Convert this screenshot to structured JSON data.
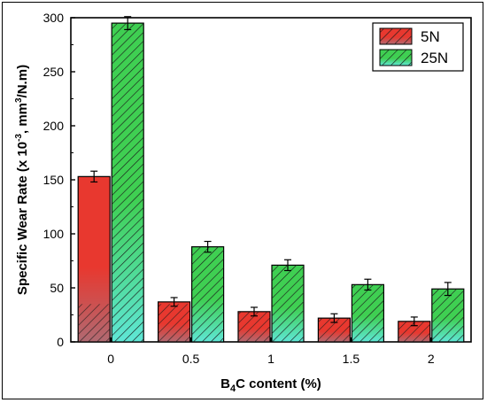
{
  "chart_data": {
    "type": "bar",
    "categories": [
      "0",
      "0.5",
      "1",
      "1.5",
      "2"
    ],
    "series": [
      {
        "name": "5N",
        "values": [
          153,
          37,
          28,
          22,
          19
        ],
        "errors": [
          5,
          4,
          4,
          4,
          4
        ],
        "color": "#e8382f"
      },
      {
        "name": "25N",
        "values": [
          295,
          88,
          71,
          53,
          49
        ],
        "errors": [
          6,
          5,
          5,
          5,
          6
        ],
        "color": "#3fcf52"
      }
    ],
    "xlabel_parts": [
      "B",
      "4",
      "C content (%)"
    ],
    "ylabel_parts": [
      "Specific Wear Rate (x 10",
      "-3",
      ", mm",
      "3",
      "/N.m)"
    ],
    "ylim": [
      0,
      300
    ],
    "yticks": [
      0,
      50,
      100,
      150,
      200,
      250,
      300
    ],
    "hatch": "diagonal",
    "legend_position": "top-right",
    "grid": false
  }
}
